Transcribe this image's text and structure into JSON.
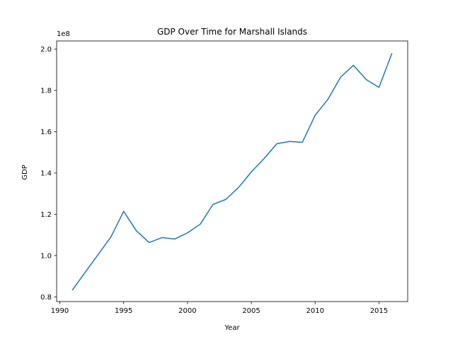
{
  "chart_data": {
    "type": "line",
    "title": "GDP Over Time for Marshall Islands",
    "xlabel": "Year",
    "ylabel": "GDP",
    "y_multiplier_label": "1e8",
    "xlim": [
      1989.75,
      2017.25
    ],
    "ylim": [
      0.777,
      2.04
    ],
    "y_scale": 100000000,
    "x_ticks": [
      1990,
      1995,
      2000,
      2005,
      2010,
      2015
    ],
    "x_tick_labels": [
      "1990",
      "1995",
      "2000",
      "2005",
      "2010",
      "2015"
    ],
    "y_ticks": [
      0.8,
      1.0,
      1.2,
      1.4,
      1.6,
      1.8,
      2.0
    ],
    "y_tick_labels": [
      "0.8",
      "1.0",
      "1.2",
      "1.4",
      "1.6",
      "1.8",
      "2.0"
    ],
    "grid": false,
    "series": [
      {
        "color": "#1f77b4",
        "x": [
          1991,
          1992,
          1993,
          1994,
          1995,
          1996,
          1997,
          1998,
          1999,
          2000,
          2001,
          2002,
          2003,
          2004,
          2005,
          2006,
          2007,
          2008,
          2009,
          2010,
          2011,
          2012,
          2013,
          2014,
          2015,
          2016
        ],
        "y": [
          0.834,
          0.92,
          1.005,
          1.09,
          1.214,
          1.12,
          1.063,
          1.087,
          1.08,
          1.11,
          1.152,
          1.248,
          1.272,
          1.33,
          1.405,
          1.47,
          1.542,
          1.553,
          1.549,
          1.68,
          1.757,
          1.865,
          1.922,
          1.853,
          1.815,
          1.978
        ]
      }
    ]
  }
}
